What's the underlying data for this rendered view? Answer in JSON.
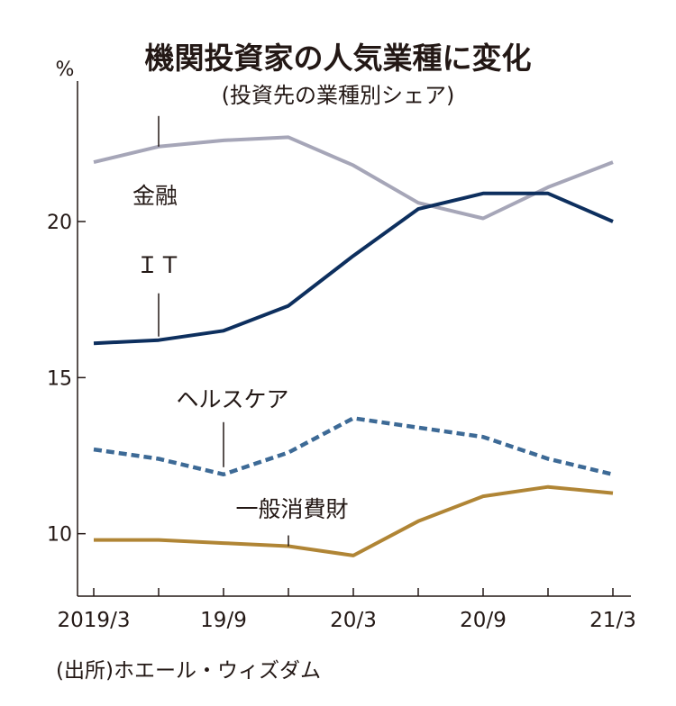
{
  "chart_data": {
    "type": "line",
    "title": "機関投資家の人気業種に変化",
    "subtitle": "(投資先の業種別シェア)",
    "ylabel": "%",
    "ylim": [
      8,
      24.5
    ],
    "yticks": [
      10,
      15,
      20
    ],
    "x": [
      "2019/3",
      "2019/6",
      "2019/9",
      "2019/12",
      "2020/3",
      "2020/6",
      "2020/9",
      "2020/12",
      "2021/3"
    ],
    "xtick_labels": [
      "2019/3",
      "",
      "19/9",
      "",
      "20/3",
      "",
      "20/9",
      "",
      "21/3"
    ],
    "series": [
      {
        "name": "金融",
        "label": "金融",
        "values": [
          21.9,
          22.4,
          22.6,
          22.7,
          21.8,
          20.6,
          20.1,
          21.1,
          21.9
        ],
        "color": "#a6a6b8",
        "dash": "solid"
      },
      {
        "name": "IT",
        "label": "ＩＴ",
        "values": [
          16.1,
          16.2,
          16.5,
          17.3,
          18.9,
          20.4,
          20.9,
          20.9,
          20.0
        ],
        "color": "#0d2f5e",
        "dash": "solid"
      },
      {
        "name": "ヘルスケア",
        "label": "ヘルスケア",
        "values": [
          12.7,
          12.4,
          11.9,
          12.6,
          13.7,
          13.4,
          13.1,
          12.4,
          11.9
        ],
        "color": "#3d6a96",
        "dash": "dashed"
      },
      {
        "name": "一般消費財",
        "label": "一般消費財",
        "values": [
          9.8,
          9.8,
          9.7,
          9.6,
          9.3,
          10.4,
          11.2,
          11.5,
          11.3
        ],
        "color": "#b08535",
        "dash": "solid"
      }
    ],
    "source": "(出所)ホエール・ウィズダム"
  }
}
